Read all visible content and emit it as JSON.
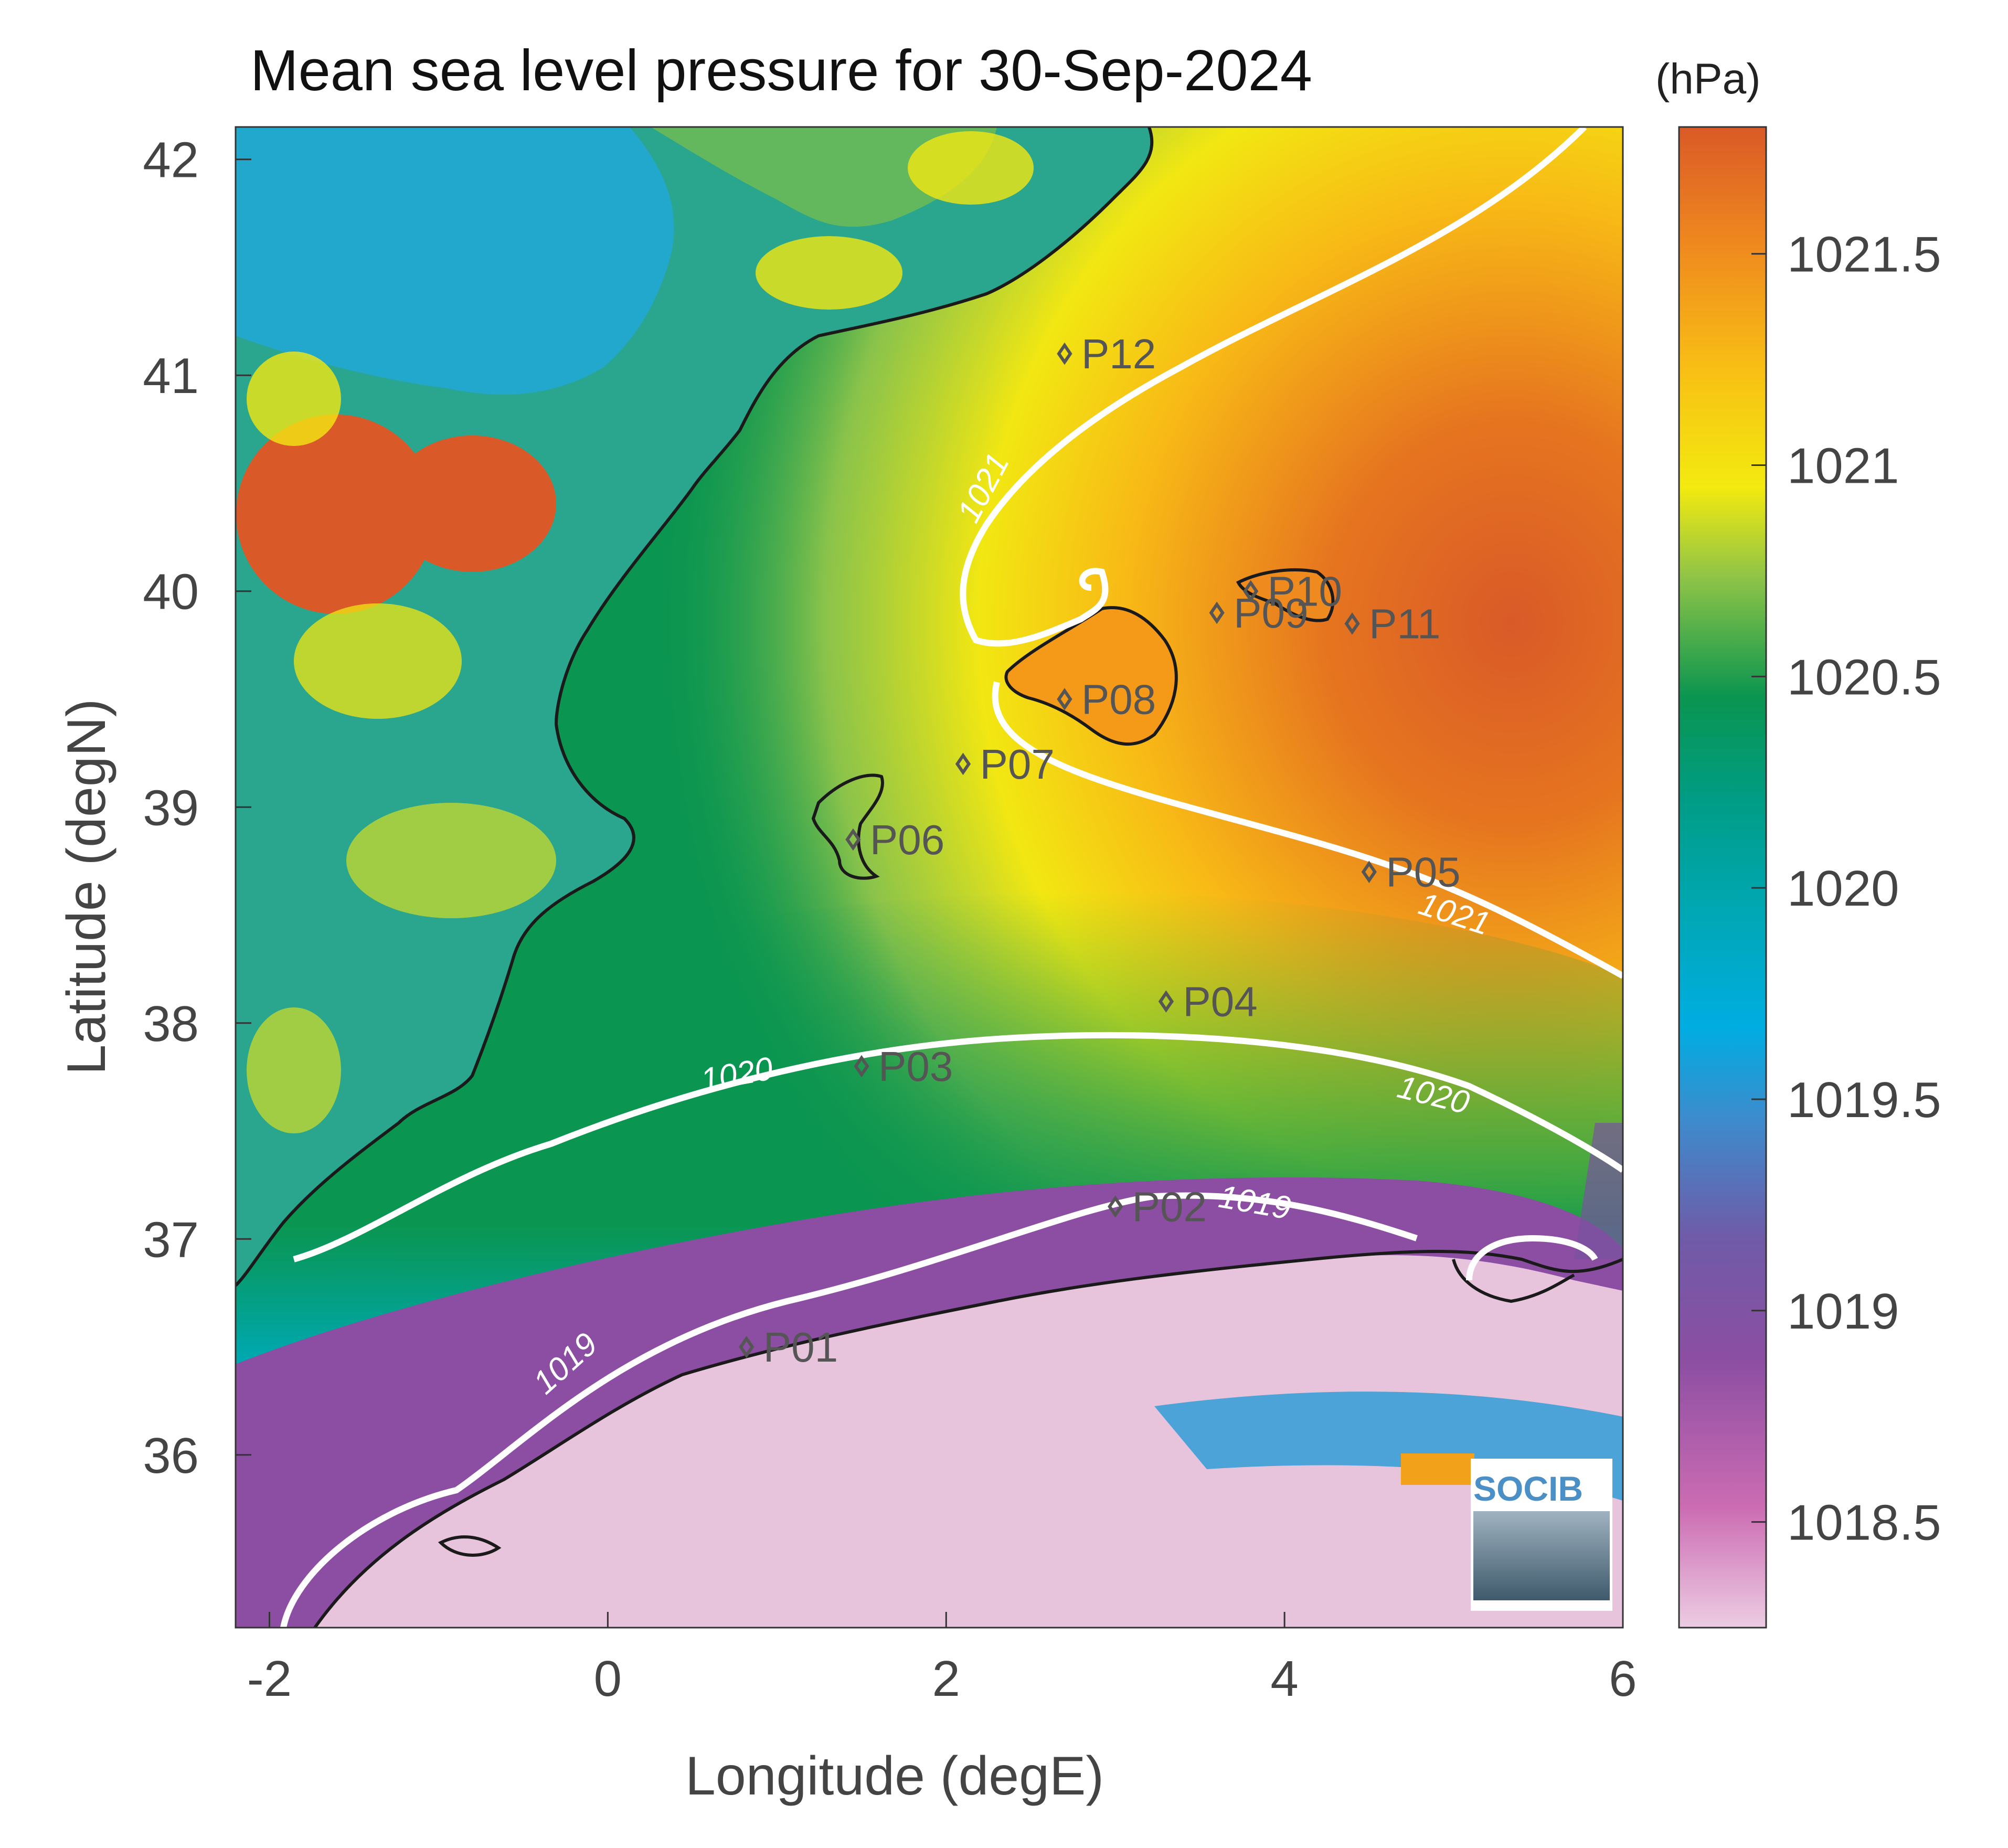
{
  "title": "Mean sea level pressure for 30-Sep-2024",
  "units": "(hPa)",
  "x_axis": {
    "label": "Longitude (degE)",
    "range": [
      -2.2,
      6.0
    ],
    "ticks": [
      -2,
      0,
      2,
      4,
      6
    ],
    "tick_labels": [
      "-2",
      "0",
      "2",
      "4",
      "6"
    ]
  },
  "y_axis": {
    "label": "Latitude (degN)",
    "range": [
      35.2,
      42.15
    ],
    "ticks": [
      36,
      37,
      38,
      39,
      40,
      41,
      42
    ],
    "tick_labels": [
      "36",
      "37",
      "38",
      "39",
      "40",
      "41",
      "42"
    ]
  },
  "colorbar": {
    "range": [
      1018.25,
      1021.8
    ],
    "ticks": [
      1018.5,
      1019,
      1019.5,
      1020,
      1020.5,
      1021,
      1021.5
    ],
    "tick_labels": [
      "1018.5",
      "1019",
      "1019.5",
      "1020",
      "1020.5",
      "1021",
      "1021.5"
    ],
    "colors": [
      "#e8c8df",
      "#c25aa9",
      "#7952a0",
      "#2f8ed0",
      "#00aee2",
      "#009e8f",
      "#08965a",
      "#7cc04a",
      "#f2ea10",
      "#f9bd14",
      "#ee7f1e",
      "#d95a28"
    ]
  },
  "contours": [
    {
      "level": 1019,
      "label": "1019"
    },
    {
      "level": 1020,
      "label": "1020"
    },
    {
      "level": 1021,
      "label": "1021"
    }
  ],
  "points": [
    {
      "id": "P01",
      "lon": 0.82,
      "lat": 36.5
    },
    {
      "id": "P02",
      "lon": 3.0,
      "lat": 37.15
    },
    {
      "id": "P03",
      "lon": 1.5,
      "lat": 37.8
    },
    {
      "id": "P04",
      "lon": 3.3,
      "lat": 38.1
    },
    {
      "id": "P05",
      "lon": 4.5,
      "lat": 38.7
    },
    {
      "id": "P06",
      "lon": 1.45,
      "lat": 38.85
    },
    {
      "id": "P07",
      "lon": 2.1,
      "lat": 39.2
    },
    {
      "id": "P08",
      "lon": 2.7,
      "lat": 39.5
    },
    {
      "id": "P09",
      "lon": 3.6,
      "lat": 39.9
    },
    {
      "id": "P10",
      "lon": 3.8,
      "lat": 40.0
    },
    {
      "id": "P11",
      "lon": 4.4,
      "lat": 39.85
    },
    {
      "id": "P12",
      "lon": 2.7,
      "lat": 41.1
    }
  ],
  "logo": {
    "text": "SOCIB"
  },
  "chart_data": {
    "type": "heatmap",
    "title": "Mean sea level pressure for 30-Sep-2024",
    "xlabel": "Longitude (degE)",
    "ylabel": "Latitude (degN)",
    "xlim": [
      -2.2,
      6.0
    ],
    "ylim": [
      35.2,
      42.15
    ],
    "zlim": [
      1018.25,
      1021.8
    ],
    "z_unit": "hPa",
    "contour_levels": [
      1019,
      1020,
      1021
    ],
    "grid": false,
    "legend": "colorbar-right"
  }
}
